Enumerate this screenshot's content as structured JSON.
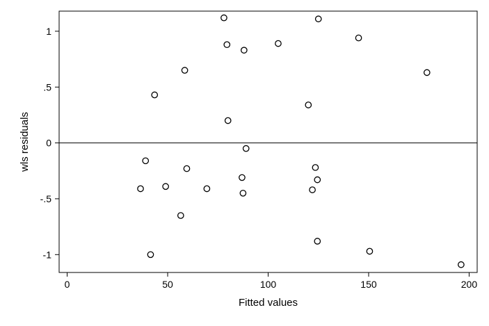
{
  "chart_data": {
    "type": "scatter",
    "title": "",
    "xlabel": "Fitted values",
    "ylabel": "wls residuals",
    "xlim": [
      -4,
      204
    ],
    "ylim": [
      -1.16,
      1.18
    ],
    "x_ticks": [
      0,
      50,
      100,
      150,
      200
    ],
    "x_tick_labels": [
      "0",
      "50",
      "100",
      "150",
      "200"
    ],
    "y_ticks": [
      1,
      0.5,
      0,
      -0.5,
      -1
    ],
    "y_tick_labels": [
      "1",
      ".5",
      "0",
      "-.5",
      "-1"
    ],
    "reference_line_y": 0,
    "grid": false,
    "points": [
      {
        "x": 78,
        "y": 1.12
      },
      {
        "x": 125,
        "y": 1.11
      },
      {
        "x": 145,
        "y": 0.94
      },
      {
        "x": 79.5,
        "y": 0.88
      },
      {
        "x": 105,
        "y": 0.89
      },
      {
        "x": 88,
        "y": 0.83
      },
      {
        "x": 58.5,
        "y": 0.65
      },
      {
        "x": 179,
        "y": 0.63
      },
      {
        "x": 43.5,
        "y": 0.43
      },
      {
        "x": 120,
        "y": 0.34
      },
      {
        "x": 80,
        "y": 0.2
      },
      {
        "x": 89,
        "y": -0.05
      },
      {
        "x": 39,
        "y": -0.16
      },
      {
        "x": 59.5,
        "y": -0.23
      },
      {
        "x": 123.5,
        "y": -0.22
      },
      {
        "x": 87,
        "y": -0.31
      },
      {
        "x": 124.5,
        "y": -0.33
      },
      {
        "x": 36.5,
        "y": -0.41
      },
      {
        "x": 49,
        "y": -0.39
      },
      {
        "x": 69.5,
        "y": -0.41
      },
      {
        "x": 122,
        "y": -0.42
      },
      {
        "x": 87.5,
        "y": -0.45
      },
      {
        "x": 56.5,
        "y": -0.65
      },
      {
        "x": 124.5,
        "y": -0.88
      },
      {
        "x": 150.5,
        "y": -0.97
      },
      {
        "x": 41.5,
        "y": -1.0
      },
      {
        "x": 196,
        "y": -1.09
      }
    ]
  }
}
